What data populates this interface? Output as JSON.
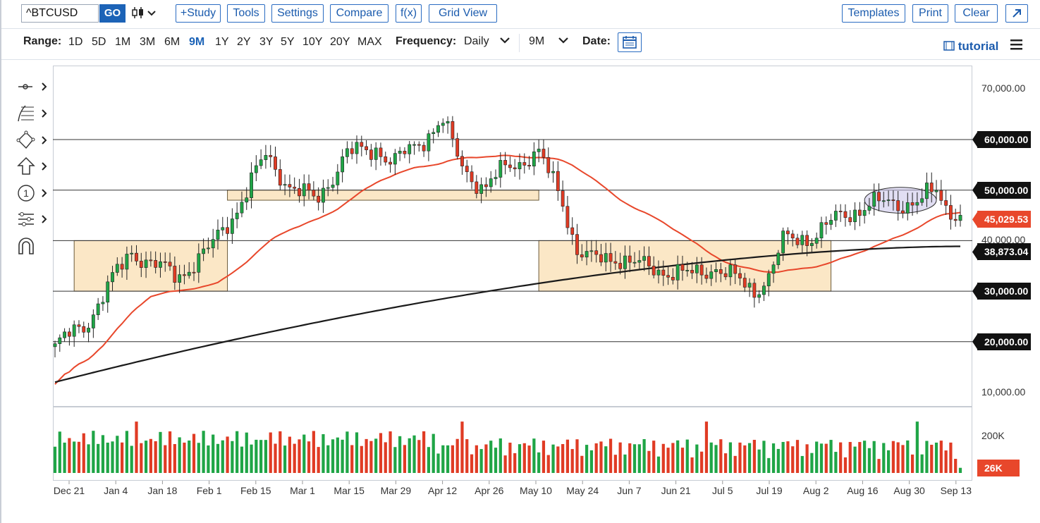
{
  "toolbar": {
    "symbol": "^BTCUSD",
    "go_label": "GO",
    "chart_type_icon": "candlestick-icon",
    "study_label": "+Study",
    "tools_label": "Tools",
    "settings_label": "Settings",
    "compare_label": "Compare",
    "fx_label": "f(x)",
    "grid_view_label": "Grid View",
    "templates_label": "Templates",
    "print_label": "Print",
    "clear_label": "Clear",
    "expand_icon": "expand-arrow-icon"
  },
  "range_bar": {
    "range_label": "Range:",
    "ranges": [
      "1D",
      "5D",
      "1M",
      "3M",
      "6M",
      "9M",
      "1Y",
      "2Y",
      "3Y",
      "5Y",
      "10Y",
      "20Y",
      "MAX"
    ],
    "active_range": "9M",
    "frequency_label": "Frequency:",
    "frequency_value": "Daily",
    "period_value": "9M",
    "date_label": "Date:",
    "calendar_icon": "calendar-icon",
    "tutorial_label": "tutorial",
    "menu_icon": "hamburger-menu-icon"
  },
  "left_tools": [
    "line-tool-icon",
    "fibonacci-tool-icon",
    "shapes-tool-icon",
    "arrow-tool-icon",
    "numbered-marker-icon",
    "measure-tool-icon",
    "magnet-icon"
  ],
  "colors": {
    "up": "#1fa546",
    "down": "#e03b24",
    "ma_fast": "#e8472b",
    "ma_slow": "#1a1a1a",
    "zone_fill": "#fbe7c6",
    "ellipse": "#c9c3ea",
    "link": "#1c5cae"
  },
  "price_axis": {
    "ticks": [
      "70,000.00",
      "60,000.00",
      "50,000.00",
      "40,000.00",
      "30,000.00",
      "20,000.00",
      "10,000.00"
    ],
    "tags": [
      {
        "label": "60,000.00",
        "color": "#111111"
      },
      {
        "label": "50,000.00",
        "color": "#111111"
      },
      {
        "label": "45,029.53",
        "color": "#e8472b"
      },
      {
        "label": "38,873.04",
        "color": "#111111"
      },
      {
        "label": "30,000.00",
        "color": "#111111"
      },
      {
        "label": "20,000.00",
        "color": "#111111"
      }
    ]
  },
  "volume_axis": {
    "tick": "200K",
    "tag": "26K"
  },
  "x_axis": [
    "Dec 21",
    "Jan 4",
    "Jan 18",
    "Feb 1",
    "Feb 15",
    "Mar 1",
    "Mar 15",
    "Mar 29",
    "Apr 12",
    "Apr 26",
    "May 10",
    "May 24",
    "Jun 7",
    "Jun 21",
    "Jul 5",
    "Jul 19",
    "Aug 2",
    "Aug 16",
    "Aug 30",
    "Sep 13"
  ],
  "chart_data": {
    "type": "candlestick",
    "symbol": "^BTCUSD",
    "frequency": "Daily",
    "range": "9M",
    "ylim": [
      5000,
      75000
    ],
    "last_price": 45029.53,
    "ma_fast_last": 45029.53,
    "ma_slow_last": 38873.04,
    "horizontal_lines": [
      60000,
      50000,
      40000,
      30000,
      20000
    ],
    "zones": [
      {
        "from_label": "Dec 28",
        "to_label": "Feb 11",
        "low": 30000,
        "high": 40000
      },
      {
        "from_label": "Feb 10",
        "to_label": "May 13",
        "low": 48000,
        "high": 50000
      },
      {
        "from_label": "May 13",
        "to_label": "Aug 8",
        "low": 30000,
        "high": 40000
      }
    ],
    "highlight": {
      "type": "ellipse",
      "from_label": "Aug 20",
      "to_label": "Sep 6",
      "low": 46000,
      "high": 50000
    },
    "volume_last": 26000
  }
}
